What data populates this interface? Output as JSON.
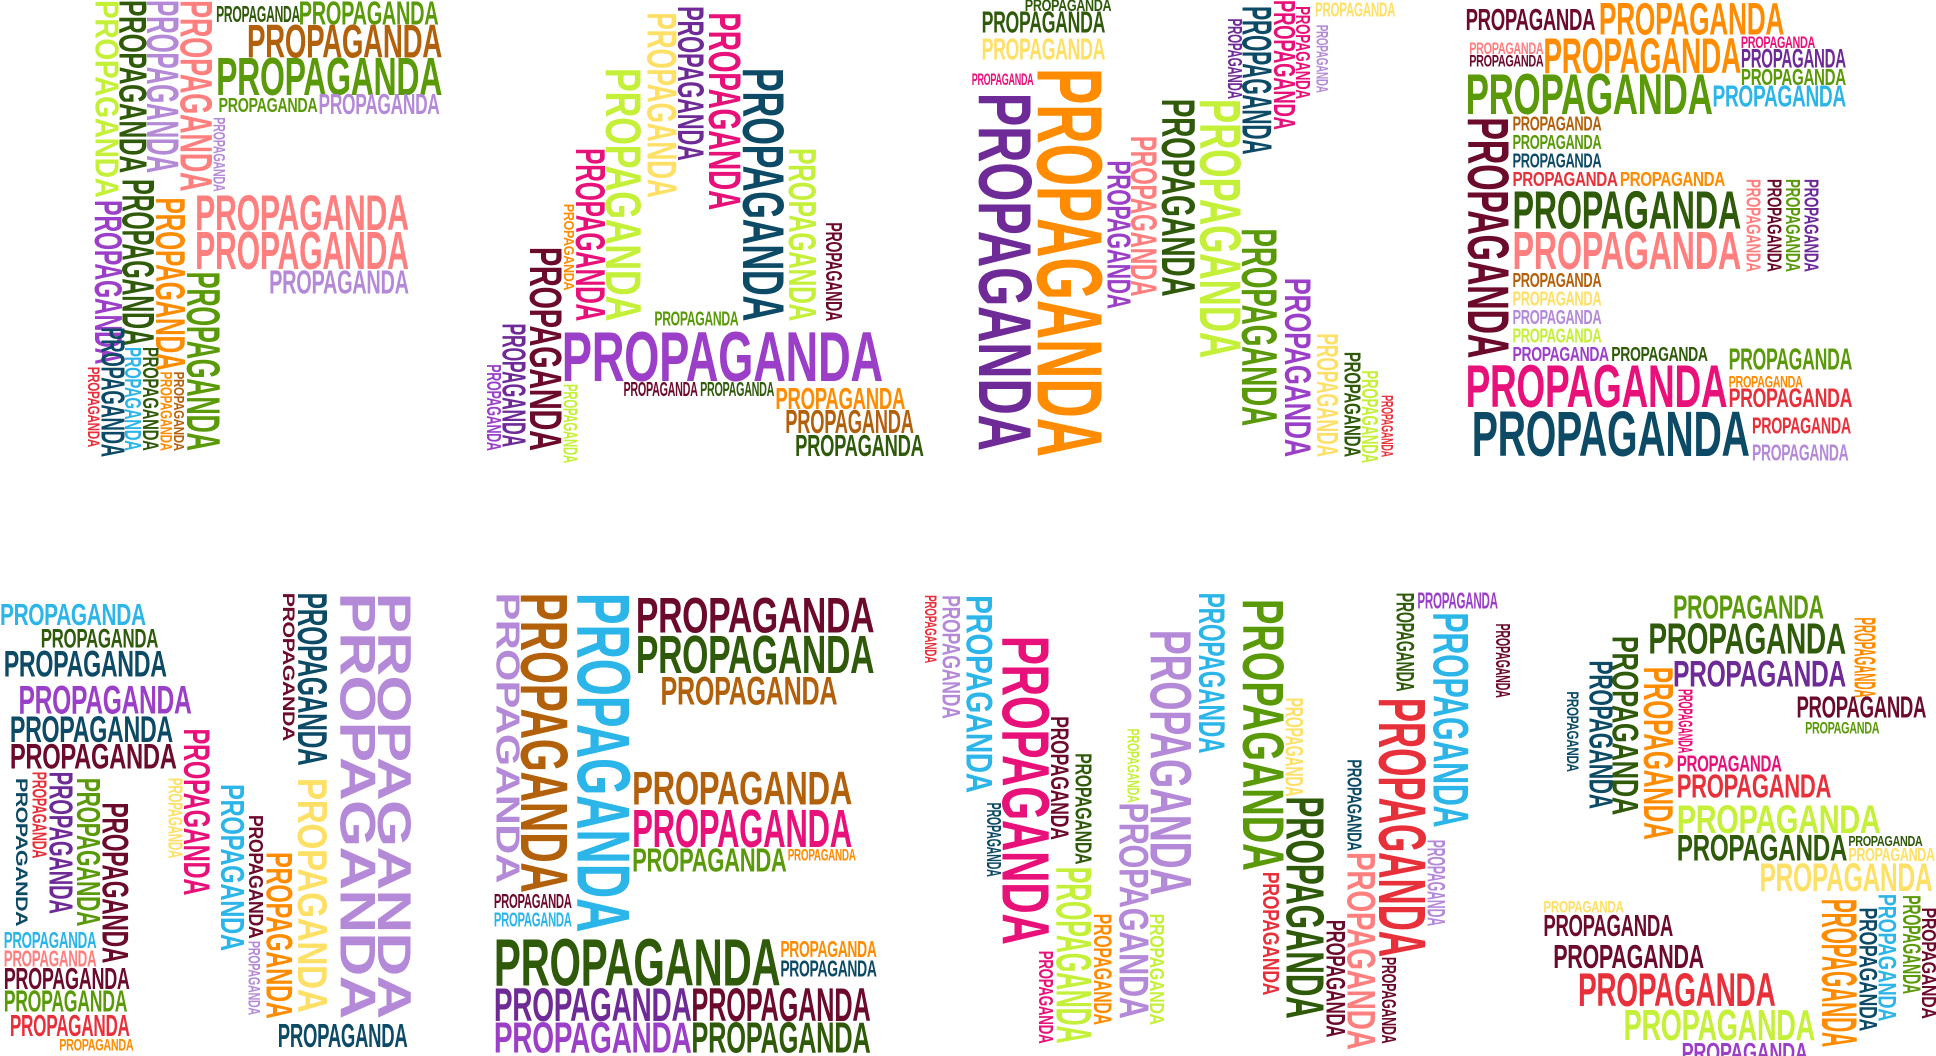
{
  "word": "PROPAGANDA",
  "palette": {
    "G": "#5a9a08",
    "D": "#2f5a0a",
    "L": "#c5f03a",
    "B": "#2bb5e8",
    "K": "#0c4a66",
    "P": "#e8117a",
    "S": "#ff7f7f",
    "O": "#ff8c00",
    "N": "#b3600a",
    "R": "#e8303a",
    "U": "#6e2a96",
    "V": "#b48ad8",
    "Y": "#ffe066",
    "M": "#6b0a2a",
    "Q": "#9b3fc8"
  }
}
